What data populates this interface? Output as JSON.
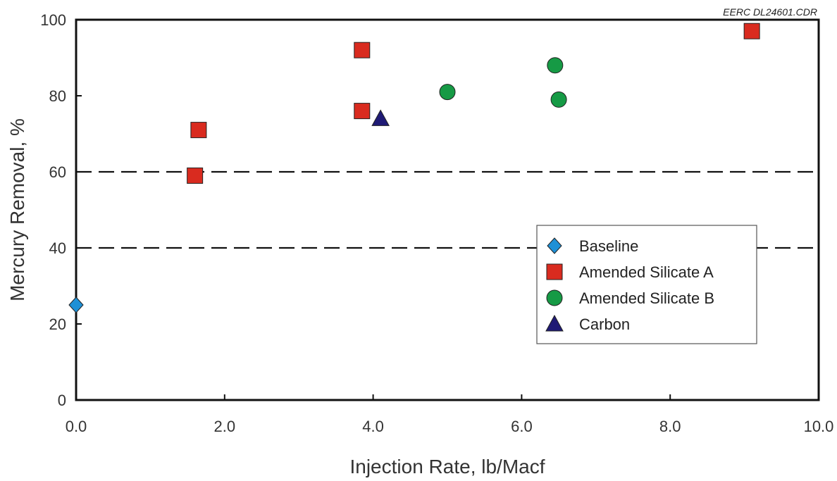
{
  "chart_data": {
    "type": "scatter",
    "source_label": "EERC DL24601.CDR",
    "xlabel": "Injection Rate, lb/Macf",
    "ylabel": "Mercury Removal, %",
    "xlim": [
      0,
      10
    ],
    "ylim": [
      0,
      100
    ],
    "xticks": [
      "0.0",
      "2.0",
      "4.0",
      "6.0",
      "8.0",
      "10.0"
    ],
    "yticks": [
      "0",
      "20",
      "40",
      "60",
      "80",
      "100"
    ],
    "reference_lines": [
      40,
      60
    ],
    "legend_position": "lower-right",
    "series": [
      {
        "name": "Baseline",
        "marker": "diamond",
        "color": "#1e90d6",
        "points": [
          [
            0.0,
            25
          ]
        ]
      },
      {
        "name": "Amended Silicate A",
        "marker": "square",
        "color": "#d92b1f",
        "points": [
          [
            1.6,
            59
          ],
          [
            1.65,
            71
          ],
          [
            3.85,
            76
          ],
          [
            3.85,
            92
          ],
          [
            9.1,
            97
          ]
        ]
      },
      {
        "name": "Amended Silicate B",
        "marker": "circle",
        "color": "#169a45",
        "points": [
          [
            5.0,
            81
          ],
          [
            6.45,
            88
          ],
          [
            6.5,
            79
          ]
        ]
      },
      {
        "name": "Carbon",
        "marker": "triangle",
        "color": "#1f1a75",
        "points": [
          [
            4.1,
            74
          ]
        ]
      }
    ]
  }
}
